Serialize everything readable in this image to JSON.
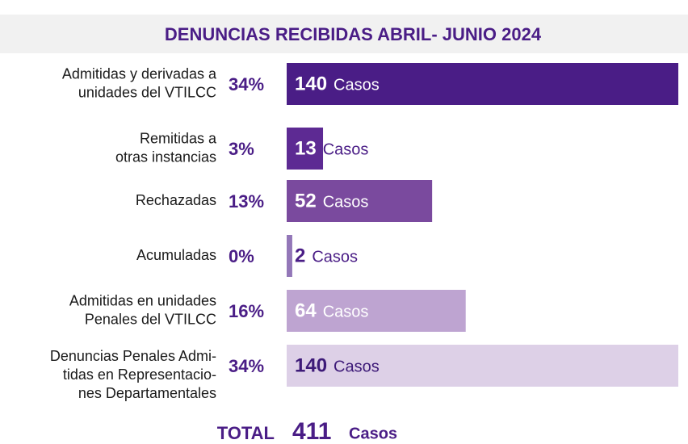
{
  "chart_data": {
    "type": "bar",
    "orientation": "horizontal",
    "title": "DENUNCIAS RECIBIDAS ABRIL- JUNIO 2024",
    "categories": [
      [
        "Admitidas y derivadas a",
        "unidades del VTILCC"
      ],
      [
        "Remitidas a",
        "otras instancias"
      ],
      [
        "Rechazadas"
      ],
      [
        "Acumuladas"
      ],
      [
        "Admitidas en unidades",
        "Penales del VTILCC"
      ],
      [
        "Denuncias Penales Admi-",
        "tidas en Representacio-",
        "nes Departamentales"
      ]
    ],
    "values": [
      140,
      13,
      52,
      2,
      64,
      140
    ],
    "percentages": [
      {
        "value": 34,
        "label": "34%"
      },
      {
        "value": 3,
        "label": "3%"
      },
      {
        "value": 13,
        "label": "13%"
      },
      {
        "value": 0,
        "label": "0%"
      },
      {
        "value": 16,
        "label": "16%"
      },
      {
        "value": 34,
        "label": "34%"
      }
    ],
    "unit": "Casos",
    "colors": [
      "#4a1d86",
      "#5d2a93",
      "#7a4a9e",
      "#9377b8",
      "#bea4d1",
      "#ddd0e7"
    ],
    "label_colors": [
      "#ffffff",
      "#ffffff",
      "#ffffff",
      "#ffffff",
      "#ffffff",
      "#3d1a78"
    ],
    "xlim": [
      0,
      140
    ],
    "total_label": "TOTAL",
    "total": 411
  }
}
